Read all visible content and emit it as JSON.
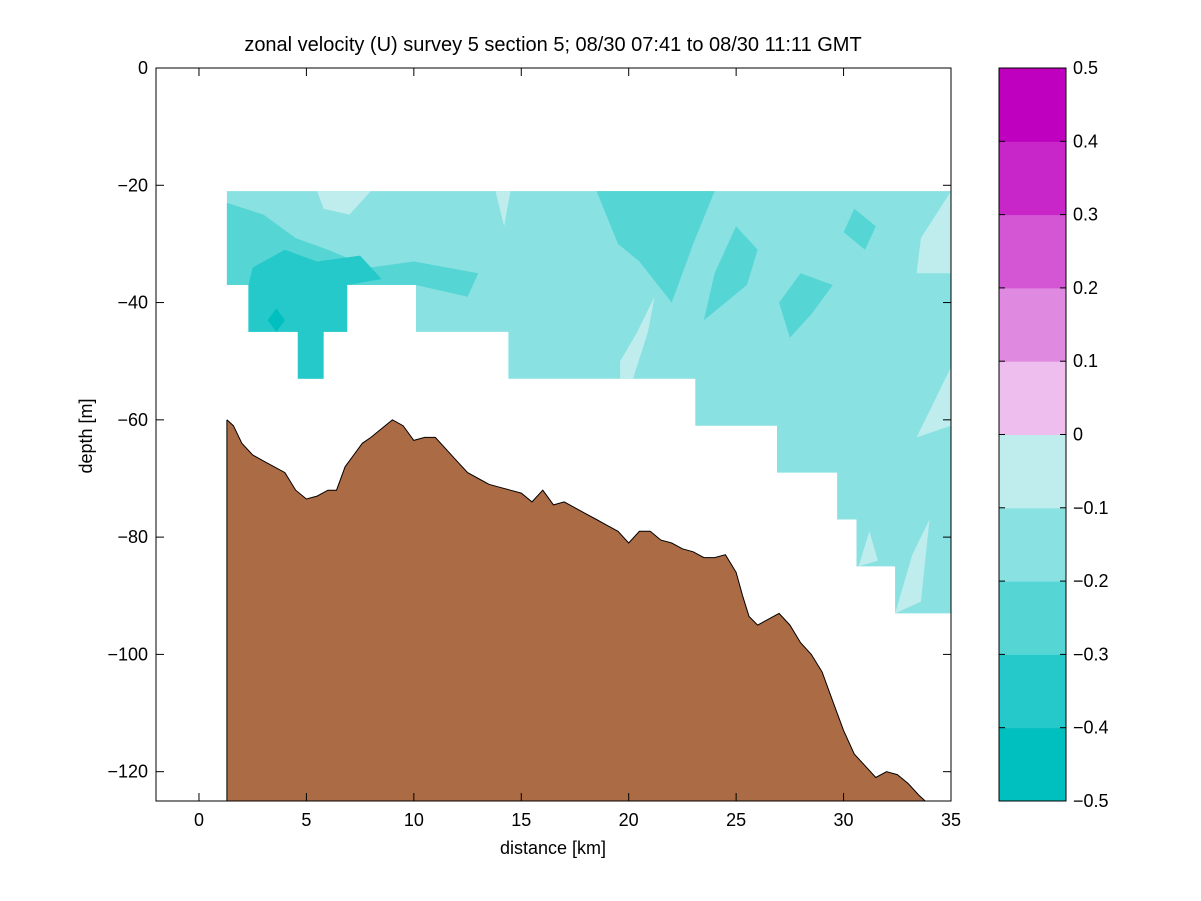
{
  "chart_data": [
    {
      "type": "contour",
      "title": "zonal velocity (U) survey 5 section 5; 08/30 07:41 to 08/30 11:11 GMT",
      "xlabel": "distance [km]",
      "ylabel": "depth [m]",
      "xlim": [
        -2,
        35
      ],
      "ylim": [
        -125,
        0
      ],
      "xticks": [
        0,
        5,
        10,
        15,
        20,
        25,
        30,
        35
      ],
      "yticks": [
        0,
        -20,
        -40,
        -60,
        -80,
        -100,
        -120
      ],
      "grid": false,
      "data_region": {
        "top_depth": -21,
        "outline": [
          [
            1.3,
            -21
          ],
          [
            35,
            -21
          ],
          [
            35,
            -93
          ],
          [
            32.4,
            -93
          ],
          [
            32.4,
            -85
          ],
          [
            30.6,
            -85
          ],
          [
            30.6,
            -77
          ],
          [
            29.7,
            -77
          ],
          [
            29.7,
            -69
          ],
          [
            26.9,
            -69
          ],
          [
            26.9,
            -61
          ],
          [
            23.1,
            -61
          ],
          [
            23.1,
            -53
          ],
          [
            14.4,
            -53
          ],
          [
            14.4,
            -45
          ],
          [
            10.1,
            -45
          ],
          [
            10.1,
            -37
          ],
          [
            6.9,
            -37
          ],
          [
            6.9,
            -45
          ],
          [
            5.8,
            -45
          ],
          [
            5.8,
            -53
          ],
          [
            4.6,
            -53
          ],
          [
            4.6,
            -45
          ],
          [
            2.3,
            -45
          ],
          [
            2.3,
            -37
          ],
          [
            1.3,
            -37
          ]
        ],
        "dominant_level": [
          -0.2,
          -0.1
        ]
      },
      "velocity_patches": [
        {
          "level": [
            -0.3,
            -0.2
          ],
          "points": [
            [
              1.3,
              -37
            ],
            [
              1.3,
              -23
            ],
            [
              3,
              -25
            ],
            [
              4.5,
              -29
            ],
            [
              6,
              -31
            ],
            [
              8,
              -34
            ],
            [
              10,
              -33
            ],
            [
              13,
              -35
            ],
            [
              12.5,
              -39
            ],
            [
              10.1,
              -37
            ],
            [
              2.3,
              -37
            ]
          ]
        },
        {
          "level": [
            -0.4,
            -0.3
          ],
          "points": [
            [
              2.3,
              -37
            ],
            [
              2.3,
              -45
            ],
            [
              4.6,
              -45
            ],
            [
              4.6,
              -53
            ],
            [
              5.8,
              -53
            ],
            [
              5.8,
              -45
            ],
            [
              6.9,
              -45
            ],
            [
              6.9,
              -37
            ],
            [
              8.5,
              -36
            ],
            [
              7.5,
              -32
            ],
            [
              5.5,
              -33
            ],
            [
              4,
              -31
            ],
            [
              2.5,
              -34
            ]
          ]
        },
        {
          "level": [
            -0.5,
            -0.4
          ],
          "points": [
            [
              3.2,
              -43
            ],
            [
              3.6,
              -41
            ],
            [
              4,
              -43
            ],
            [
              3.6,
              -45
            ]
          ]
        },
        {
          "level": [
            -0.3,
            -0.2
          ],
          "points": [
            [
              18.5,
              -21
            ],
            [
              24,
              -21
            ],
            [
              23,
              -30
            ],
            [
              22,
              -40
            ],
            [
              20.5,
              -33
            ],
            [
              19.5,
              -30
            ]
          ]
        },
        {
          "level": [
            -0.3,
            -0.2
          ],
          "points": [
            [
              25,
              -27
            ],
            [
              26,
              -31
            ],
            [
              25.5,
              -37
            ],
            [
              24.5,
              -40
            ],
            [
              23.5,
              -43
            ],
            [
              24,
              -35
            ]
          ]
        },
        {
          "level": [
            -0.3,
            -0.2
          ],
          "points": [
            [
              28,
              -35
            ],
            [
              29.5,
              -37
            ],
            [
              28.5,
              -42
            ],
            [
              27.5,
              -46
            ],
            [
              27,
              -40
            ]
          ]
        },
        {
          "level": [
            -0.3,
            -0.2
          ],
          "points": [
            [
              30.5,
              -24
            ],
            [
              31.5,
              -27
            ],
            [
              31,
              -31
            ],
            [
              30,
              -28
            ]
          ]
        },
        {
          "level": [
            -0.1,
            0
          ],
          "points": [
            [
              5.5,
              -21
            ],
            [
              8,
              -21
            ],
            [
              7,
              -25
            ],
            [
              5.8,
              -24
            ]
          ]
        },
        {
          "level": [
            -0.1,
            0
          ],
          "points": [
            [
              13.8,
              -21
            ],
            [
              14.5,
              -21
            ],
            [
              14.2,
              -27
            ]
          ]
        },
        {
          "level": [
            -0.1,
            0
          ],
          "points": [
            [
              33.6,
              -29
            ],
            [
              35,
              -21
            ],
            [
              35,
              -35
            ],
            [
              33.4,
              -35
            ]
          ]
        },
        {
          "level": [
            -0.1,
            0
          ],
          "points": [
            [
              33.4,
              -63
            ],
            [
              34.2,
              -57
            ],
            [
              35,
              -51
            ],
            [
              35,
              -61
            ]
          ]
        },
        {
          "level": [
            -0.1,
            0
          ],
          "points": [
            [
              32.4,
              -93
            ],
            [
              33.2,
              -83
            ],
            [
              34,
              -77
            ],
            [
              33.6,
              -91
            ]
          ]
        },
        {
          "level": [
            -0.1,
            0
          ],
          "points": [
            [
              30.7,
              -85
            ],
            [
              31.2,
              -79
            ],
            [
              31.6,
              -84
            ]
          ]
        },
        {
          "level": [
            -0.1,
            0
          ],
          "points": [
            [
              19.6,
              -50
            ],
            [
              20.4,
              -45
            ],
            [
              21.2,
              -39
            ],
            [
              20.9,
              -45
            ],
            [
              20.2,
              -53
            ],
            [
              19.6,
              -53
            ]
          ]
        }
      ],
      "bathymetry": {
        "fill_color": "#AB6B45",
        "line_color": "#000000",
        "x": [
          1.3,
          1.6,
          2.0,
          2.5,
          3.0,
          3.5,
          4.0,
          4.5,
          5.0,
          5.5,
          6.0,
          6.4,
          6.8,
          7.2,
          7.6,
          8.0,
          8.5,
          9.0,
          9.5,
          10.0,
          10.5,
          11.0,
          11.5,
          12.0,
          12.5,
          13.0,
          13.5,
          14.0,
          14.5,
          15.0,
          15.5,
          16.0,
          16.5,
          17.0,
          17.5,
          18.0,
          18.5,
          19.0,
          19.5,
          20.0,
          20.5,
          21.0,
          21.5,
          22.0,
          22.5,
          23.0,
          23.5,
          24.0,
          24.5,
          25.0,
          25.3,
          25.6,
          26.0,
          26.5,
          27.0,
          27.5,
          28.0,
          28.5,
          29.0,
          29.5,
          30.0,
          30.5,
          31.0,
          31.5,
          32.0,
          32.5,
          33.0,
          33.5,
          33.8
        ],
        "depth": [
          -60,
          -61,
          -64,
          -66,
          -67,
          -68,
          -69,
          -72,
          -73.5,
          -73,
          -72,
          -72,
          -68,
          -66,
          -64,
          -63,
          -61.5,
          -60,
          -61,
          -63.5,
          -63,
          -63,
          -65,
          -67,
          -69,
          -70,
          -71,
          -71.5,
          -72,
          -72.5,
          -74,
          -72,
          -74.5,
          -74,
          -75,
          -76,
          -77,
          -78,
          -79,
          -81,
          -79,
          -79,
          -80.5,
          -81,
          -82,
          -82.5,
          -83.5,
          -83.5,
          -83,
          -86,
          -90,
          -93.5,
          -95,
          -94,
          -93,
          -95,
          -98,
          -100,
          -103,
          -108,
          -113,
          -117,
          -119,
          -121,
          -120,
          -120.5,
          -122,
          -124,
          -125
        ]
      },
      "colorbar": {
        "levels": [
          -0.5,
          -0.4,
          -0.3,
          -0.2,
          -0.1,
          0,
          0.1,
          0.2,
          0.3,
          0.4,
          0.5
        ],
        "colors": [
          "#00BFBF",
          "#26C9C9",
          "#56D5D5",
          "#89E1E1",
          "#BFEDED",
          "#EEBFEE",
          "#E089E0",
          "#D556D5",
          "#C926C9",
          "#BF00BF"
        ],
        "tick_labels": [
          "−0.5",
          "−0.4",
          "−0.3",
          "−0.2",
          "−0.1",
          "0",
          "0.1",
          "0.2",
          "0.3",
          "0.4",
          "0.5"
        ]
      }
    }
  ]
}
